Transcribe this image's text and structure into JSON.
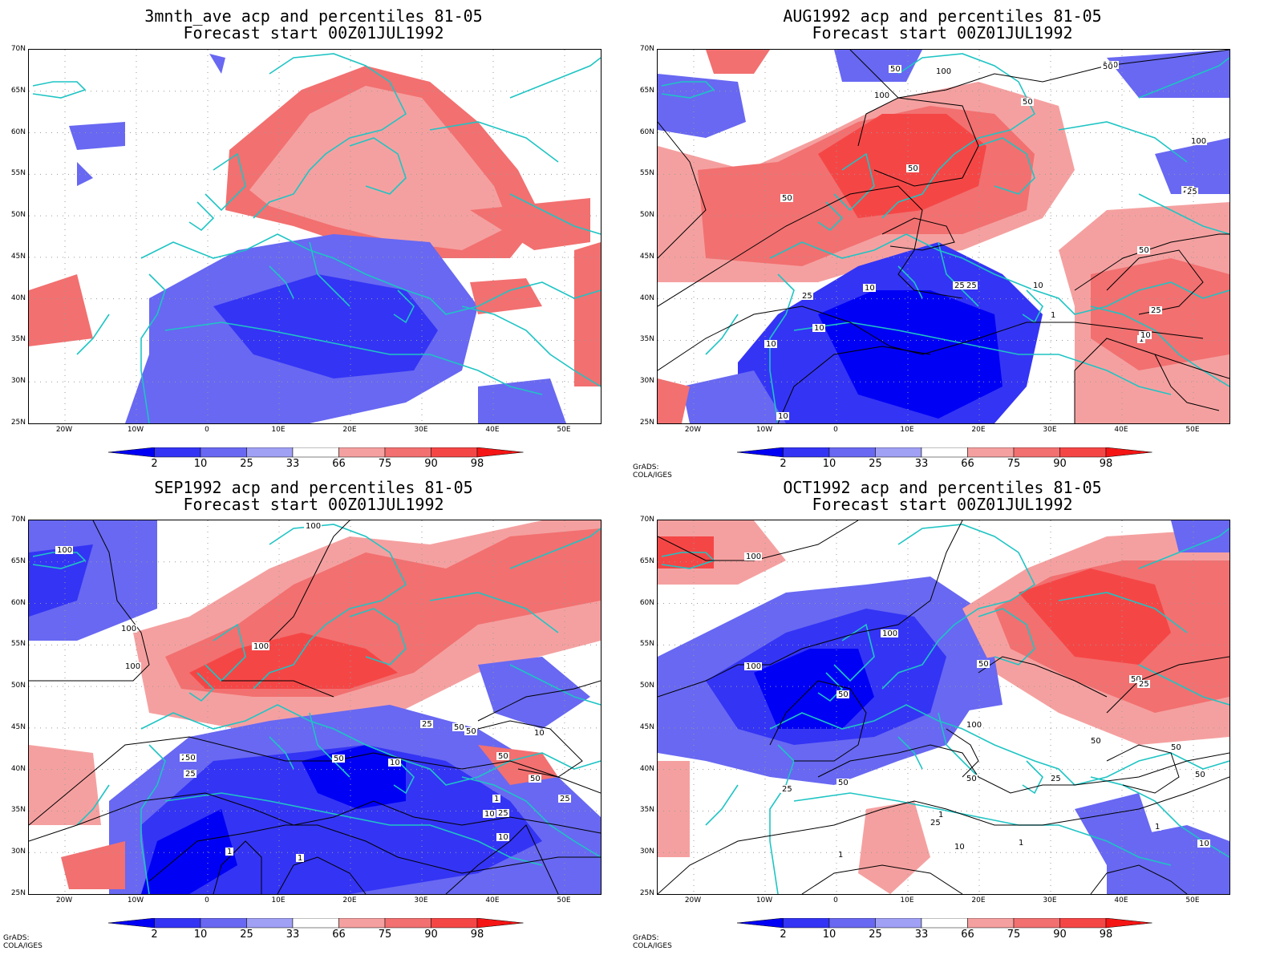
{
  "panels": [
    {
      "title1": "3mnth_ave acp and percentiles 81-05",
      "title2": "Forecast start 00Z01JUL1992",
      "credit": ""
    },
    {
      "title1": "AUG1992 acp and percentiles 81-05",
      "title2": "Forecast start 00Z01JUL1992",
      "credit": "GrADS: COLA/IGES"
    },
    {
      "title1": "SEP1992 acp and percentiles 81-05",
      "title2": "Forecast start 00Z01JUL1992",
      "credit": "GrADS: COLA/IGES"
    },
    {
      "title1": "OCT1992 acp and percentiles 81-05",
      "title2": "Forecast start 00Z01JUL1992",
      "credit": "GrADS: COLA/IGES"
    }
  ],
  "lat_labels": [
    "70N",
    "65N",
    "60N",
    "55N",
    "50N",
    "45N",
    "40N",
    "35N",
    "30N",
    "25N"
  ],
  "lon_labels": [
    "20W",
    "10W",
    "0",
    "10E",
    "20E",
    "30E",
    "40E",
    "50E"
  ],
  "colorbar": {
    "labels": [
      "2",
      "10",
      "25",
      "33",
      "66",
      "75",
      "90",
      "98"
    ],
    "colors": [
      "#0000f5",
      "#3434f5",
      "#6868f2",
      "#a0a0f5",
      "#ffffff",
      "#f5a0a0",
      "#f27070",
      "#f54646",
      "#f51515"
    ]
  },
  "contour_labels": {
    "aug": [
      "50",
      "100",
      "50",
      "50",
      "100",
      "100",
      "25",
      "100",
      "50",
      "50",
      "25",
      "10",
      "25",
      "25",
      "10",
      "10",
      "1",
      "25",
      "50",
      "10",
      "1",
      "10",
      "10",
      "25"
    ],
    "sep": [
      "100",
      "100",
      "100",
      "100",
      "100",
      "10",
      "25",
      "50",
      "50",
      "10",
      "50",
      "25",
      "50",
      "25",
      "1",
      "10",
      "1",
      "50",
      "25",
      "10",
      "1",
      "50",
      "25"
    ],
    "oct": [
      "100",
      "100",
      "100",
      "50",
      "50",
      "50",
      "100",
      "50",
      "25",
      "50",
      "25",
      "50",
      "25",
      "10",
      "1",
      "10",
      "1",
      "50",
      "50",
      "25",
      "10",
      "1",
      "1"
    ]
  },
  "colors": {
    "coastline": "#1fc4c4",
    "contour": "#000000",
    "grid": "#9a9a9a"
  }
}
